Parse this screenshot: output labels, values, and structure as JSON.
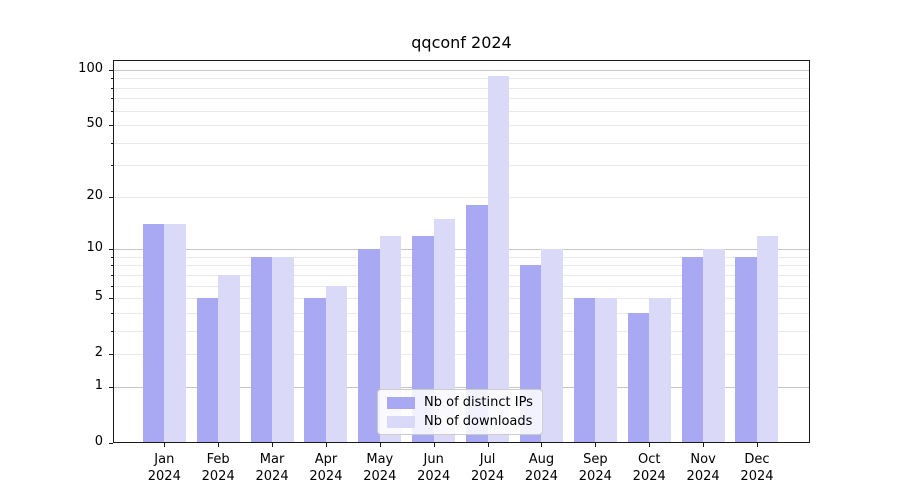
{
  "title": "qqconf 2024",
  "chart_data": {
    "type": "bar",
    "title": "qqconf 2024",
    "categories": [
      "Jan",
      "Feb",
      "Mar",
      "Apr",
      "May",
      "Jun",
      "Jul",
      "Aug",
      "Sep",
      "Oct",
      "Nov",
      "Dec"
    ],
    "x_sublabel": "2024",
    "series": [
      {
        "name": "Nb of distinct IPs",
        "color": "#a9a9f3",
        "values": [
          14,
          5,
          9,
          5,
          10,
          12,
          18,
          8,
          5,
          4,
          9,
          9
        ]
      },
      {
        "name": "Nb of downloads",
        "color": "#dadaf8",
        "values": [
          14,
          7,
          9,
          6,
          12,
          15,
          93,
          10,
          5,
          5,
          10,
          12
        ]
      }
    ],
    "y_axis": {
      "scale": "log1p",
      "min": 0,
      "max": 100,
      "ticks": [
        0,
        1,
        2,
        5,
        10,
        20,
        50,
        100
      ]
    },
    "grid": {
      "major": [
        1,
        10,
        100
      ],
      "minor": [
        2,
        3,
        4,
        5,
        6,
        7,
        8,
        9,
        20,
        30,
        40,
        50,
        60,
        70,
        80,
        90
      ],
      "major_color": "#c5c5c5",
      "minor_color": "#e9e9e9"
    },
    "legend": {
      "position": "lower center",
      "entries": [
        "Nb of distinct IPs",
        "Nb of downloads"
      ]
    },
    "style": {
      "bar_ips": "#a9a9f3",
      "bar_downloads": "#dadaf8",
      "spine": "#1a1a1a",
      "background": "#ffffff",
      "legend_bg": "rgba(255,255,255,0.85)",
      "legend_border": "#cccccc"
    }
  }
}
